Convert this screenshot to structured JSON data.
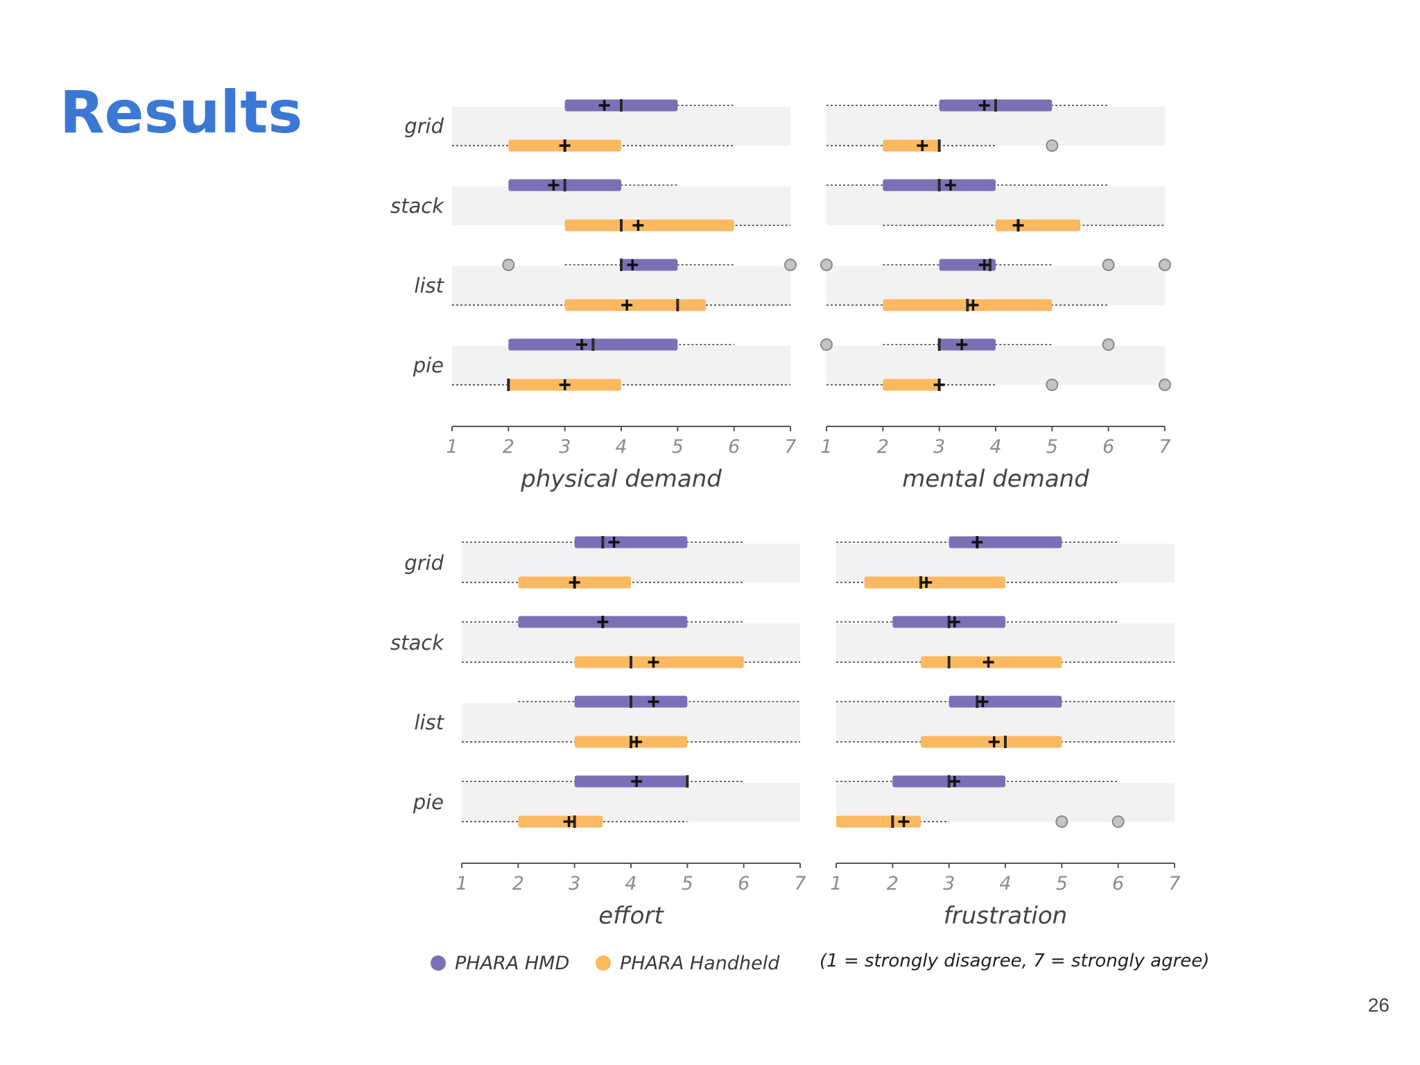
{
  "slide": {
    "title": "Results",
    "page_number": "26"
  },
  "chart_data": {
    "type": "boxplot",
    "scale": {
      "min": 1,
      "max": 7,
      "ticks": [
        "1",
        "2",
        "3",
        "4",
        "5",
        "6",
        "7"
      ]
    },
    "categories": [
      "grid",
      "stack",
      "list",
      "pie"
    ],
    "legend": [
      {
        "name": "PHARA HMD",
        "color": "#7b70b5"
      },
      {
        "name": "PHARA Handheld",
        "color": "#fbb961"
      }
    ],
    "note": "(1 = strongly disagree, 7 = strongly agree)",
    "panels": [
      {
        "title": "physical demand",
        "series": [
          {
            "name": "PHARA HMD",
            "boxes": [
              {
                "category": "grid",
                "whisker": [
                  3,
                  6
                ],
                "q1": 3,
                "q3": 5,
                "median": 4,
                "mean": 3.7,
                "outliers": []
              },
              {
                "category": "stack",
                "whisker": [
                  2,
                  5
                ],
                "q1": 2,
                "q3": 4,
                "median": 3,
                "mean": 2.8,
                "outliers": []
              },
              {
                "category": "list",
                "whisker": [
                  3,
                  6
                ],
                "q1": 4,
                "q3": 5,
                "median": 4,
                "mean": 4.2,
                "outliers": [
                  2,
                  7
                ]
              },
              {
                "category": "pie",
                "whisker": [
                  2,
                  6
                ],
                "q1": 2,
                "q3": 5,
                "median": 3.5,
                "mean": 3.3,
                "outliers": []
              }
            ]
          },
          {
            "name": "PHARA Handheld",
            "boxes": [
              {
                "category": "grid",
                "whisker": [
                  1,
                  6
                ],
                "q1": 2,
                "q3": 4,
                "median": 3,
                "mean": 3.0,
                "outliers": []
              },
              {
                "category": "stack",
                "whisker": [
                  3,
                  7
                ],
                "q1": 3,
                "q3": 6,
                "median": 4,
                "mean": 4.3,
                "outliers": []
              },
              {
                "category": "list",
                "whisker": [
                  1,
                  7
                ],
                "q1": 3,
                "q3": 5.5,
                "median": 5,
                "mean": 4.1,
                "outliers": []
              },
              {
                "category": "pie",
                "whisker": [
                  1,
                  7
                ],
                "q1": 2,
                "q3": 4,
                "median": 2,
                "mean": 3.0,
                "outliers": []
              }
            ]
          }
        ]
      },
      {
        "title": "mental demand",
        "series": [
          {
            "name": "PHARA HMD",
            "boxes": [
              {
                "category": "grid",
                "whisker": [
                  1,
                  6
                ],
                "q1": 3,
                "q3": 5,
                "median": 4,
                "mean": 3.8,
                "outliers": []
              },
              {
                "category": "stack",
                "whisker": [
                  1,
                  6
                ],
                "q1": 2,
                "q3": 4,
                "median": 3,
                "mean": 3.2,
                "outliers": []
              },
              {
                "category": "list",
                "whisker": [
                  2,
                  5
                ],
                "q1": 3,
                "q3": 4,
                "median": 3.9,
                "mean": 3.8,
                "outliers": [
                  1,
                  6,
                  7
                ]
              },
              {
                "category": "pie",
                "whisker": [
                  2,
                  5
                ],
                "q1": 3,
                "q3": 4,
                "median": 3,
                "mean": 3.4,
                "outliers": [
                  1,
                  6
                ]
              }
            ]
          },
          {
            "name": "PHARA Handheld",
            "boxes": [
              {
                "category": "grid",
                "whisker": [
                  1,
                  4
                ],
                "q1": 2,
                "q3": 3,
                "median": 3,
                "mean": 2.7,
                "outliers": [
                  5
                ]
              },
              {
                "category": "stack",
                "whisker": [
                  2,
                  7
                ],
                "q1": 4,
                "q3": 5.5,
                "median": 4.4,
                "mean": 4.4,
                "outliers": []
              },
              {
                "category": "list",
                "whisker": [
                  1,
                  6
                ],
                "q1": 2,
                "q3": 5,
                "median": 3.5,
                "mean": 3.6,
                "outliers": []
              },
              {
                "category": "pie",
                "whisker": [
                  1,
                  4
                ],
                "q1": 2,
                "q3": 3,
                "median": 3,
                "mean": 3.0,
                "outliers": [
                  5,
                  7
                ]
              }
            ]
          }
        ]
      },
      {
        "title": "effort",
        "series": [
          {
            "name": "PHARA HMD",
            "boxes": [
              {
                "category": "grid",
                "whisker": [
                  1,
                  6
                ],
                "q1": 3,
                "q3": 5,
                "median": 3.5,
                "mean": 3.7,
                "outliers": []
              },
              {
                "category": "stack",
                "whisker": [
                  1,
                  6
                ],
                "q1": 2,
                "q3": 5,
                "median": 3.5,
                "mean": 3.5,
                "outliers": []
              },
              {
                "category": "list",
                "whisker": [
                  2,
                  7
                ],
                "q1": 3,
                "q3": 5,
                "median": 4,
                "mean": 4.4,
                "outliers": []
              },
              {
                "category": "pie",
                "whisker": [
                  1,
                  6
                ],
                "q1": 3,
                "q3": 5,
                "median": 5,
                "mean": 4.1,
                "outliers": []
              }
            ]
          },
          {
            "name": "PHARA Handheld",
            "boxes": [
              {
                "category": "grid",
                "whisker": [
                  1,
                  6
                ],
                "q1": 2,
                "q3": 4,
                "median": 3,
                "mean": 3.0,
                "outliers": []
              },
              {
                "category": "stack",
                "whisker": [
                  1,
                  7
                ],
                "q1": 3,
                "q3": 6,
                "median": 4,
                "mean": 4.4,
                "outliers": []
              },
              {
                "category": "list",
                "whisker": [
                  1,
                  7
                ],
                "q1": 3,
                "q3": 5,
                "median": 4,
                "mean": 4.1,
                "outliers": []
              },
              {
                "category": "pie",
                "whisker": [
                  1,
                  5
                ],
                "q1": 2,
                "q3": 3.5,
                "median": 3,
                "mean": 2.9,
                "outliers": []
              }
            ]
          }
        ]
      },
      {
        "title": "frustration",
        "series": [
          {
            "name": "PHARA HMD",
            "boxes": [
              {
                "category": "grid",
                "whisker": [
                  1,
                  6
                ],
                "q1": 3,
                "q3": 5,
                "median": 3.5,
                "mean": 3.5,
                "outliers": []
              },
              {
                "category": "stack",
                "whisker": [
                  1,
                  6
                ],
                "q1": 2,
                "q3": 4,
                "median": 3,
                "mean": 3.1,
                "outliers": []
              },
              {
                "category": "list",
                "whisker": [
                  1,
                  7
                ],
                "q1": 3,
                "q3": 5,
                "median": 3.5,
                "mean": 3.6,
                "outliers": []
              },
              {
                "category": "pie",
                "whisker": [
                  1,
                  6
                ],
                "q1": 2,
                "q3": 4,
                "median": 3,
                "mean": 3.1,
                "outliers": []
              }
            ]
          },
          {
            "name": "PHARA Handheld",
            "boxes": [
              {
                "category": "grid",
                "whisker": [
                  1,
                  6
                ],
                "q1": 1.5,
                "q3": 4,
                "median": 2.5,
                "mean": 2.6,
                "outliers": []
              },
              {
                "category": "stack",
                "whisker": [
                  1,
                  7
                ],
                "q1": 2.5,
                "q3": 5,
                "median": 3,
                "mean": 3.7,
                "outliers": []
              },
              {
                "category": "list",
                "whisker": [
                  1,
                  7
                ],
                "q1": 2.5,
                "q3": 5,
                "median": 4,
                "mean": 3.8,
                "outliers": []
              },
              {
                "category": "pie",
                "whisker": [
                  1,
                  3
                ],
                "q1": 1,
                "q3": 2.5,
                "median": 2,
                "mean": 2.2,
                "outliers": [
                  5,
                  6
                ]
              }
            ]
          }
        ]
      }
    ]
  }
}
